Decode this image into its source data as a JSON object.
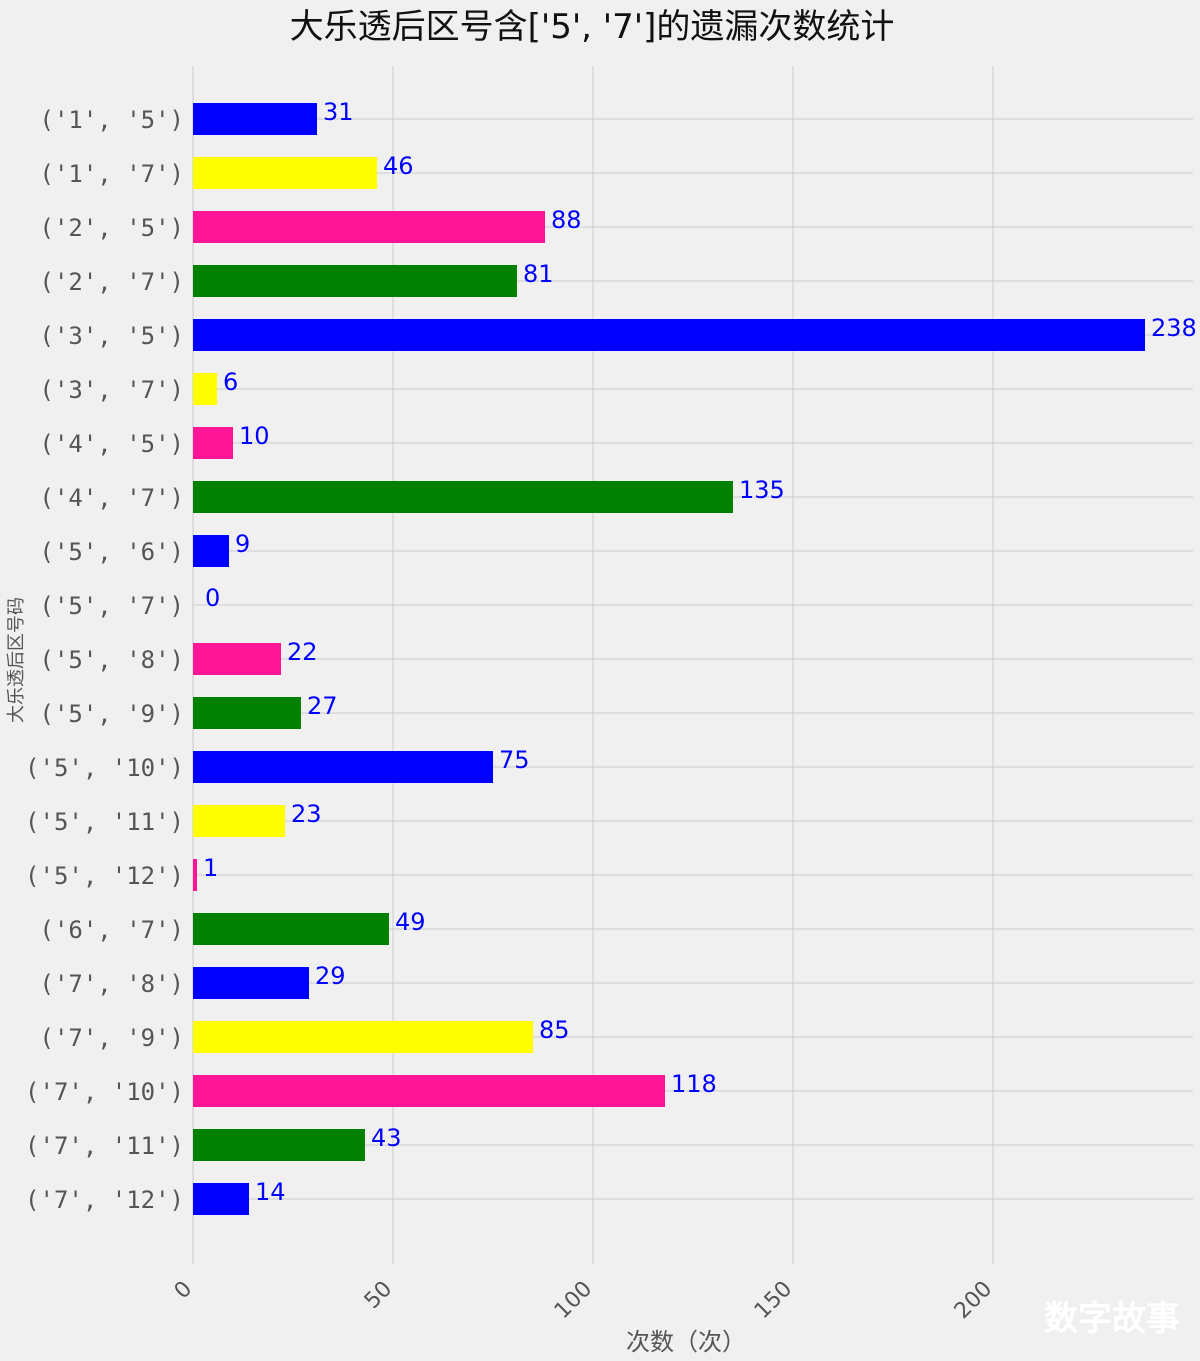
{
  "chart_data": {
    "type": "bar",
    "orientation": "horizontal",
    "title": "大乐透后区号含['5', '7']的遗漏次数统计",
    "xlabel": "次数（次）",
    "ylabel": "大乐透后区号码",
    "xlim": [
      0,
      250
    ],
    "xticks": [
      0,
      50,
      100,
      150,
      200
    ],
    "grid": true,
    "categories": [
      "('1', '5')",
      "('1', '7')",
      "('2', '5')",
      "('2', '7')",
      "('3', '5')",
      "('3', '7')",
      "('4', '5')",
      "('4', '7')",
      "('5', '6')",
      "('5', '7')",
      "('5', '8')",
      "('5', '9')",
      "('5', '10')",
      "('5', '11')",
      "('5', '12')",
      "('6', '7')",
      "('7', '8')",
      "('7', '9')",
      "('7', '10')",
      "('7', '11')",
      "('7', '12')"
    ],
    "values": [
      31,
      46,
      88,
      81,
      238,
      6,
      10,
      135,
      9,
      0,
      22,
      27,
      75,
      23,
      1,
      49,
      29,
      85,
      118,
      43,
      14
    ],
    "bar_colors": [
      "#0000ff",
      "#ffff00",
      "#ff1493",
      "#008000"
    ],
    "data_label_color": "#0000ff",
    "background_color": "#f0f0f0",
    "grid_color": "#cbcbcb"
  },
  "watermark": "数字故事"
}
